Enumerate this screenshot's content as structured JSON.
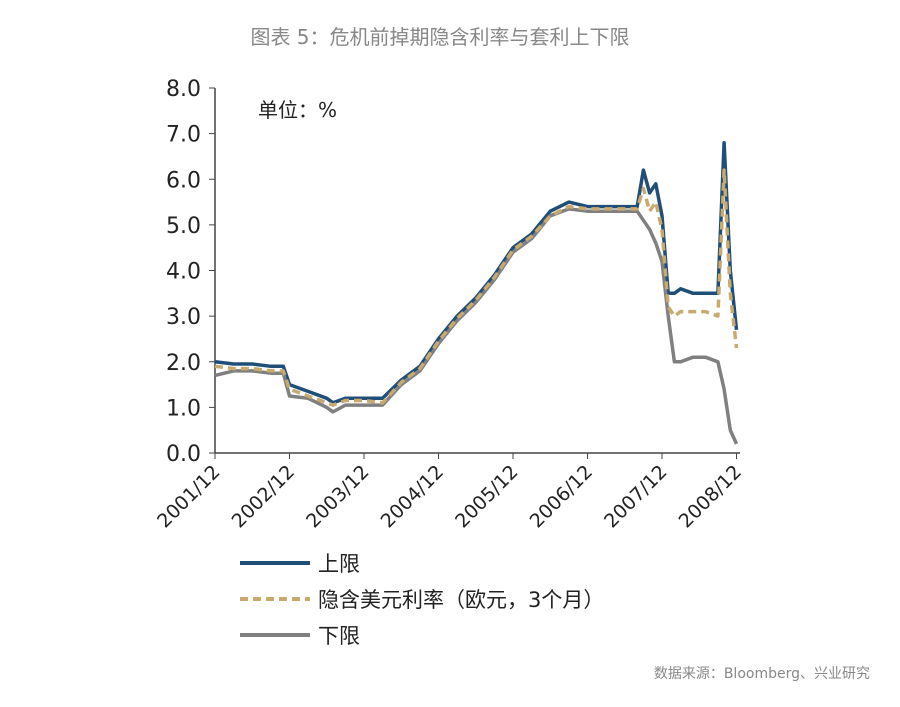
{
  "chart_data": {
    "type": "line",
    "title": "图表 5：危机前掉期隐含利率与套利上下限",
    "unit_note": "单位：%",
    "source": "数据来源：Bloomberg、兴业研究",
    "x": [
      "2001/12",
      "2002/03",
      "2002/06",
      "2002/09",
      "2002/11",
      "2002/12",
      "2003/03",
      "2003/06",
      "2003/07",
      "2003/09",
      "2003/12",
      "2004/03",
      "2004/06",
      "2004/09",
      "2004/12",
      "2005/03",
      "2005/06",
      "2005/09",
      "2005/12",
      "2006/03",
      "2006/06",
      "2006/09",
      "2006/12",
      "2007/03",
      "2007/06",
      "2007/08",
      "2007/09",
      "2007/10",
      "2007/11",
      "2007/12",
      "2008/01",
      "2008/02",
      "2008/03",
      "2008/05",
      "2008/07",
      "2008/09",
      "2008/10",
      "2008/11",
      "2008/12"
    ],
    "series": [
      {
        "name": "上限",
        "color": "#1f4e79",
        "dash": false,
        "values": [
          2.0,
          1.95,
          1.95,
          1.9,
          1.9,
          1.5,
          1.35,
          1.2,
          1.1,
          1.2,
          1.2,
          1.2,
          1.6,
          1.9,
          2.5,
          3.0,
          3.4,
          3.9,
          4.5,
          4.8,
          5.3,
          5.5,
          5.4,
          5.4,
          5.4,
          5.4,
          6.2,
          5.7,
          5.9,
          5.2,
          3.5,
          3.5,
          3.6,
          3.5,
          3.5,
          3.5,
          6.8,
          4.0,
          2.7
        ]
      },
      {
        "name": "隐含美元利率（欧元，3个月）",
        "color": "#c8a96e",
        "dash": true,
        "values": [
          1.9,
          1.85,
          1.85,
          1.8,
          1.8,
          1.4,
          1.25,
          1.1,
          1.05,
          1.15,
          1.15,
          1.1,
          1.55,
          1.85,
          2.45,
          2.95,
          3.35,
          3.85,
          4.45,
          4.75,
          5.2,
          5.4,
          5.35,
          5.35,
          5.35,
          5.35,
          5.8,
          5.3,
          5.5,
          4.9,
          3.2,
          3.0,
          3.1,
          3.1,
          3.1,
          3.0,
          6.2,
          3.5,
          2.3
        ]
      },
      {
        "name": "下限",
        "color": "#808080",
        "dash": false,
        "values": [
          1.7,
          1.8,
          1.8,
          1.75,
          1.75,
          1.25,
          1.2,
          1.0,
          0.9,
          1.05,
          1.05,
          1.05,
          1.5,
          1.8,
          2.4,
          2.9,
          3.3,
          3.8,
          4.4,
          4.7,
          5.2,
          5.35,
          5.3,
          5.3,
          5.3,
          5.3,
          5.1,
          4.9,
          4.6,
          4.2,
          3.0,
          2.0,
          2.0,
          2.1,
          2.1,
          2.0,
          1.4,
          0.5,
          0.2
        ]
      }
    ],
    "xticks": [
      "2001/12",
      "2002/12",
      "2003/12",
      "2004/12",
      "2005/12",
      "2006/12",
      "2007/12",
      "2008/12"
    ],
    "ylim": [
      0,
      8
    ],
    "yticks": [
      {
        "value": 0,
        "label": "0.0"
      },
      {
        "value": 1,
        "label": "1.0"
      },
      {
        "value": 2,
        "label": "2.0"
      },
      {
        "value": 3,
        "label": "3.0"
      },
      {
        "value": 4,
        "label": "4.0"
      },
      {
        "value": 5,
        "label": "5.0"
      },
      {
        "value": 6,
        "label": "6.0"
      },
      {
        "value": 7,
        "label": "7.0"
      },
      {
        "value": 8,
        "label": "8.0"
      }
    ],
    "grid": false
  }
}
